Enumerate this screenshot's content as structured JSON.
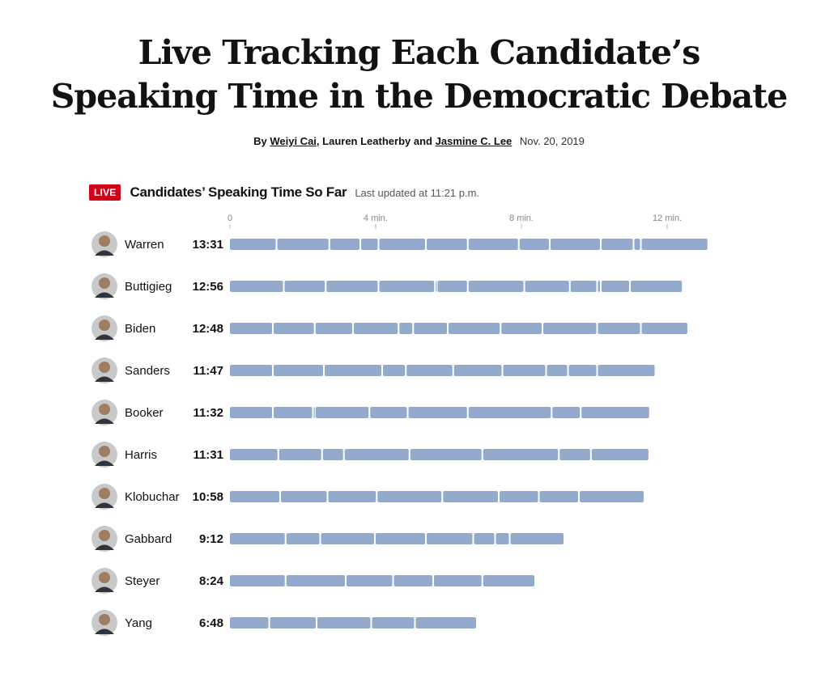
{
  "headline": {
    "line1": "Live Tracking Each Candidate’s",
    "line2": "Speaking Time in the Democratic Debate"
  },
  "byline": {
    "by": "By",
    "author1": "Weiyi Cai",
    "sep1": ",",
    "author2": "Lauren Leatherby",
    "and": "and",
    "author3": "Jasmine C. Lee",
    "date": "Nov. 20, 2019"
  },
  "chart_header": {
    "badge": "LIVE",
    "title": "Candidates’ Speaking Time So Far",
    "updated": "Last updated at 11:21 p.m."
  },
  "colors": {
    "bar": "#93aacd",
    "live": "#d0021b",
    "avatar": "#c9c9c9"
  },
  "chart_data": {
    "type": "bar",
    "orientation": "horizontal",
    "stacked_segments": true,
    "x_unit": "minutes",
    "xlim": [
      0,
      13.6
    ],
    "x_ticks": [
      {
        "value": 0,
        "label": "0"
      },
      {
        "value": 4,
        "label": "4 min."
      },
      {
        "value": 8,
        "label": "8 min."
      },
      {
        "value": 12,
        "label": "12 min."
      }
    ],
    "candidates": [
      {
        "name": "Warren",
        "time": "13:31",
        "minutes": 13.52,
        "segments": [
          1.3,
          1.45,
          0.85,
          0.5,
          1.3,
          1.15,
          1.4,
          0.85,
          1.4,
          0.9,
          0.2,
          1.85
        ]
      },
      {
        "name": "Buttigieg",
        "time": "12:56",
        "minutes": 12.93,
        "segments": [
          1.5,
          1.15,
          1.45,
          1.55,
          0.05,
          0.85,
          1.55,
          1.25,
          0.75,
          0.1,
          0.8,
          1.45
        ]
      },
      {
        "name": "Biden",
        "time": "12:48",
        "minutes": 12.8,
        "segments": [
          1.2,
          1.15,
          1.05,
          1.25,
          0.4,
          0.95,
          1.45,
          1.15,
          1.5,
          1.2,
          1.3
        ]
      },
      {
        "name": "Sanders",
        "time": "11:47",
        "minutes": 11.78,
        "segments": [
          1.2,
          1.4,
          1.6,
          0.65,
          1.3,
          1.35,
          1.2,
          0.6,
          0.8,
          1.6
        ]
      },
      {
        "name": "Booker",
        "time": "11:32",
        "minutes": 11.53,
        "segments": [
          1.2,
          1.1,
          0.05,
          1.5,
          1.05,
          1.65,
          2.3,
          0.8,
          1.9
        ]
      },
      {
        "name": "Harris",
        "time": "11:31",
        "minutes": 11.52,
        "segments": [
          1.35,
          1.2,
          0.6,
          1.8,
          2.0,
          2.1,
          0.88,
          1.6
        ]
      },
      {
        "name": "Klobuchar",
        "time": "10:58",
        "minutes": 10.97,
        "segments": [
          1.4,
          1.3,
          1.35,
          1.8,
          1.55,
          1.1,
          1.1,
          1.8
        ]
      },
      {
        "name": "Gabbard",
        "time": "9:12",
        "minutes": 9.2,
        "segments": [
          1.55,
          0.95,
          1.5,
          1.4,
          1.3,
          0.6,
          0.4,
          1.5
        ]
      },
      {
        "name": "Steyer",
        "time": "8:24",
        "minutes": 8.4,
        "segments": [
          1.55,
          1.65,
          1.3,
          1.1,
          1.35,
          1.45
        ]
      },
      {
        "name": "Yang",
        "time": "6:48",
        "minutes": 6.8,
        "segments": [
          1.1,
          1.3,
          1.5,
          1.2,
          1.7
        ]
      }
    ]
  }
}
